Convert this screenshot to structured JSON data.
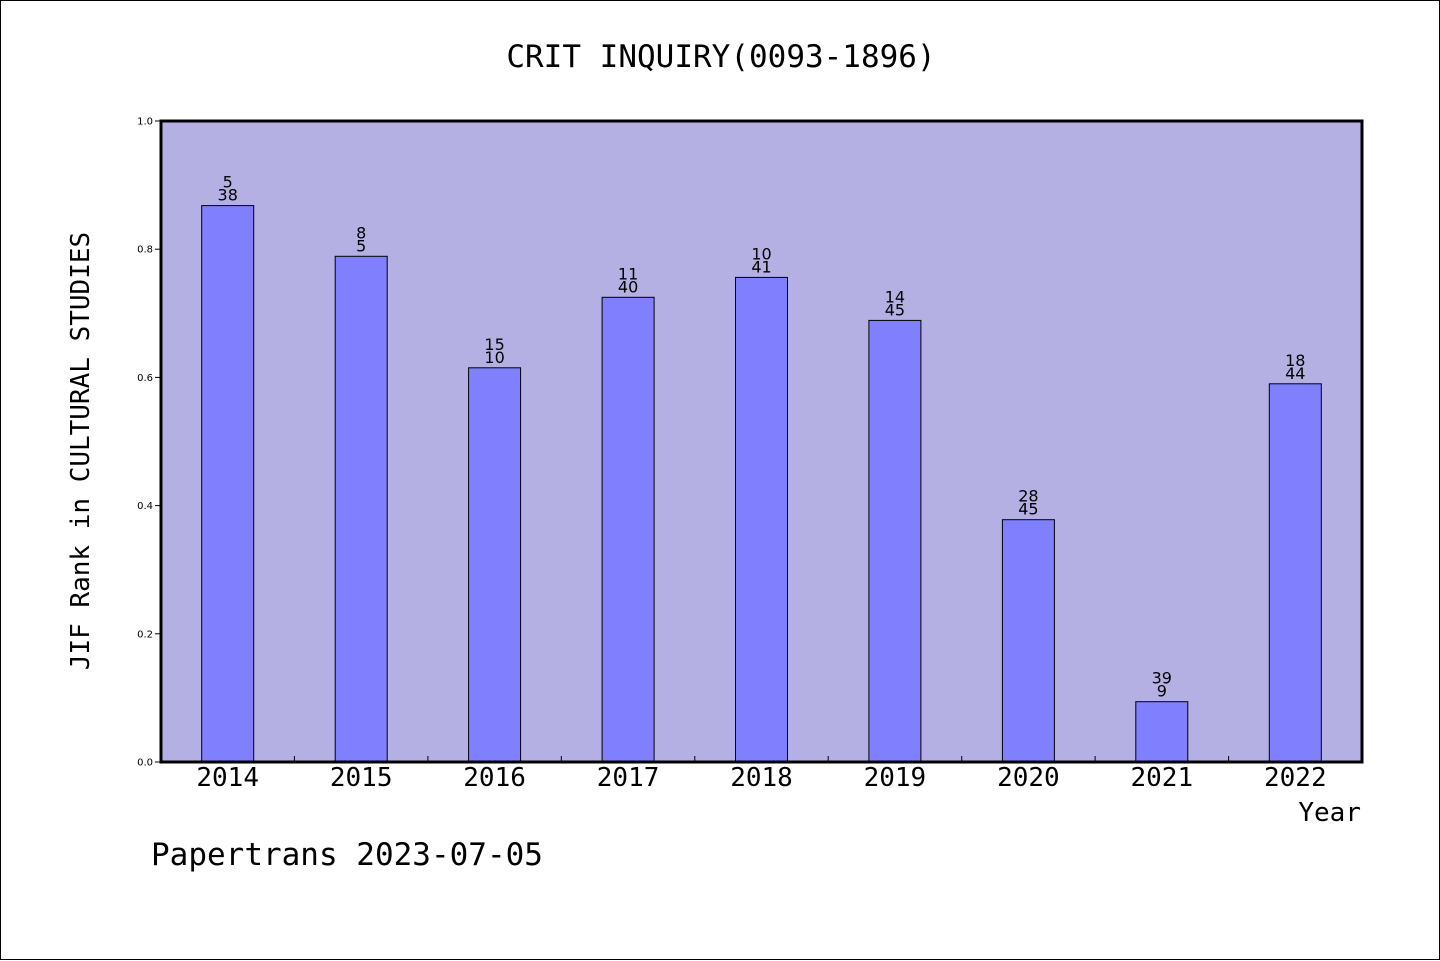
{
  "chart_data": {
    "type": "bar",
    "title": "CRIT INQUIRY(0093-1896)",
    "xlabel": "Year",
    "ylabel": "JIF Rank in CULTURAL STUDIES",
    "categories": [
      "2014",
      "2015",
      "2016",
      "2017",
      "2018",
      "2019",
      "2020",
      "2021",
      "2022"
    ],
    "values": [
      0.868,
      0.789,
      0.615,
      0.725,
      0.756,
      0.689,
      0.378,
      0.094,
      0.59
    ],
    "bar_labels": [
      [
        "5",
        "38"
      ],
      [
        "8",
        "5"
      ],
      [
        "15",
        "10"
      ],
      [
        "11",
        "40"
      ],
      [
        "10",
        "41"
      ],
      [
        "14",
        "45"
      ],
      [
        "28",
        "45"
      ],
      [
        "39",
        "9"
      ],
      [
        "18",
        "44"
      ]
    ],
    "ylim": [
      0,
      1
    ],
    "yticks": [
      "0.0",
      "0.2",
      "0.4",
      "0.6",
      "0.8",
      "1.0"
    ],
    "grid": false,
    "colors": {
      "plot_background": "#b5b0e3",
      "bar_fill": "#8080ff",
      "bar_edge": "#000000"
    }
  },
  "footer": "Papertrans 2023-07-05"
}
